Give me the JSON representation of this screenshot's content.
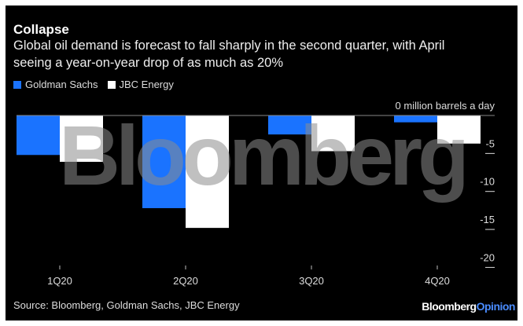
{
  "header": {
    "title": "Collapse",
    "subtitle_line1": "Global oil demand is forecast to fall sharply in the second quarter, with April",
    "subtitle_line2": "seeing a year-on-year drop of as much as 20%"
  },
  "footer": {
    "source": "Source: Bloomberg, Goldman Sachs, JBC Energy",
    "brand_main": "Bloomberg",
    "brand_accent": "Opinion"
  },
  "watermark": "Bloomberg",
  "chart_data": {
    "type": "bar",
    "title": "Collapse",
    "categories": [
      "1Q20",
      "2Q20",
      "3Q20",
      "4Q20"
    ],
    "series": [
      {
        "name": "Goldman Sachs",
        "color": "#1a73ff",
        "values": [
          -5.2,
          -12.2,
          -2.5,
          -0.9
        ]
      },
      {
        "name": "JBC Energy",
        "color": "#ffffff",
        "values": [
          -6.1,
          -14.8,
          -4.7,
          -3.7
        ]
      }
    ],
    "ylabel": "million barrels a day",
    "yticks": [
      0,
      -5,
      -10,
      -15,
      -20
    ],
    "ytick_labels": [
      "0 million barrels a day",
      "-5",
      "-10",
      "-15",
      "-20"
    ],
    "ylim": [
      -20,
      0
    ],
    "legend": "top-left",
    "grid": false
  }
}
